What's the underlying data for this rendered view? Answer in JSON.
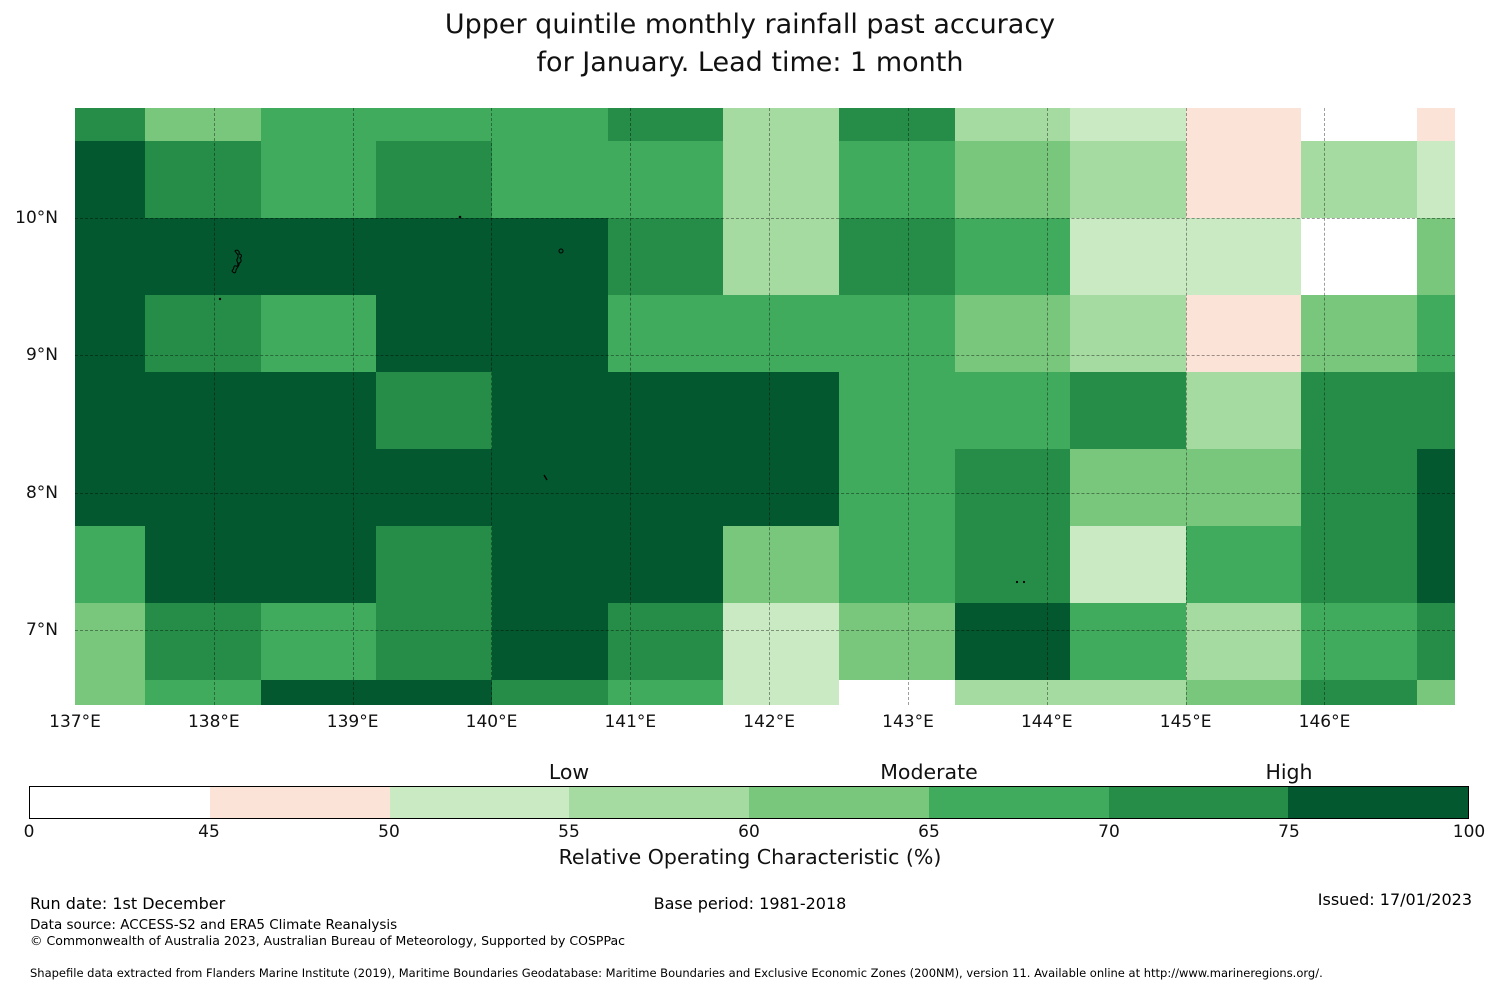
{
  "title": {
    "line1": "Upper quintile monthly rainfall past accuracy",
    "line2": "for January. Lead time: 1 month"
  },
  "chart_data": {
    "type": "heatmap",
    "title": "Upper quintile monthly rainfall past accuracy for January. Lead time: 1 month",
    "x_axis": {
      "tick_labels": [
        "137°E",
        "138°E",
        "139°E",
        "140°E",
        "141°E",
        "142°E",
        "143°E",
        "144°E",
        "145°E",
        "146°E"
      ],
      "tick_lons": [
        137,
        138,
        139,
        140,
        141,
        142,
        143,
        144,
        145,
        146
      ]
    },
    "y_axis": {
      "tick_labels": [
        "10°N",
        "9°N",
        "8°N",
        "7°N"
      ],
      "tick_lats": [
        10,
        9,
        8,
        7
      ]
    },
    "lon_range": [
      137.0,
      146.94
    ],
    "lat_range": [
      6.452,
      10.801
    ],
    "grid_lons": [
      138,
      139,
      140,
      141,
      142,
      143,
      144,
      145,
      146
    ],
    "grid_lats": [
      10,
      9,
      8,
      7
    ],
    "lon_edges": [
      137.0,
      137.504,
      138.337,
      139.17,
      140.003,
      140.836,
      141.669,
      142.502,
      143.335,
      144.168,
      145.001,
      145.834,
      146.667,
      146.94
    ],
    "lat_edges": [
      10.801,
      10.561,
      10.0,
      9.439,
      8.878,
      8.317,
      7.756,
      7.195,
      6.634,
      6.452
    ],
    "bands": [
      {
        "range": "0-45",
        "color": "#ffffff"
      },
      {
        "range": "45-50",
        "color": "#fce3d7"
      },
      {
        "range": "50-55",
        "color": "#c9eac2"
      },
      {
        "range": "55-60",
        "color": "#a5daa0"
      },
      {
        "range": "60-65",
        "color": "#79c77d"
      },
      {
        "range": "65-70",
        "color": "#41ab5d"
      },
      {
        "range": "70-75",
        "color": "#258d47"
      },
      {
        "range": "75-100",
        "color": "#03582f"
      }
    ],
    "cells": [
      [
        6,
        4,
        5,
        5,
        5,
        6,
        3,
        6,
        3,
        2,
        1,
        0,
        1
      ],
      [
        7,
        6,
        5,
        6,
        5,
        5,
        3,
        5,
        4,
        3,
        1,
        3,
        2
      ],
      [
        7,
        7,
        7,
        7,
        7,
        6,
        3,
        6,
        5,
        2,
        2,
        0,
        4
      ],
      [
        7,
        6,
        5,
        7,
        7,
        5,
        5,
        5,
        4,
        3,
        1,
        4,
        5
      ],
      [
        7,
        7,
        7,
        6,
        7,
        7,
        7,
        5,
        5,
        6,
        3,
        6,
        6
      ],
      [
        7,
        7,
        7,
        7,
        7,
        7,
        7,
        5,
        6,
        4,
        4,
        6,
        7
      ],
      [
        5,
        7,
        7,
        6,
        7,
        7,
        4,
        5,
        6,
        2,
        5,
        6,
        7
      ],
      [
        4,
        6,
        5,
        6,
        7,
        6,
        2,
        4,
        7,
        5,
        3,
        5,
        6
      ],
      [
        4,
        5,
        7,
        7,
        6,
        5,
        2,
        0,
        3,
        3,
        4,
        6,
        4
      ]
    ],
    "colorbar": {
      "boundaries": [
        0,
        45,
        50,
        55,
        60,
        65,
        70,
        75,
        100
      ],
      "category_labels": [
        {
          "text": "Low",
          "boundary": 55
        },
        {
          "text": "Moderate",
          "boundary": 65
        },
        {
          "text": "High",
          "boundary": 75
        }
      ],
      "axis_label": "Relative Operating Characteristic (%)"
    }
  },
  "footer": {
    "run_date": "Run date: 1st December",
    "base_period": "Base period: 1981-2018",
    "issued": "Issued: 17/01/2023",
    "data_source": "Data source: ACCESS-S2 and ERA5 Climate Reanalysis",
    "copyright": "© Commonwealth of Australia 2023, Australian Bureau of Meteorology, Supported by COSPPac",
    "shapefile_note": "Shapefile data extracted from Flanders Marine Institute (2019), Maritime Boundaries Geodatabase: Maritime Boundaries and Exclusive Economic Zones (200NM), version 11. Available online at http://www.marineregions.org/."
  }
}
